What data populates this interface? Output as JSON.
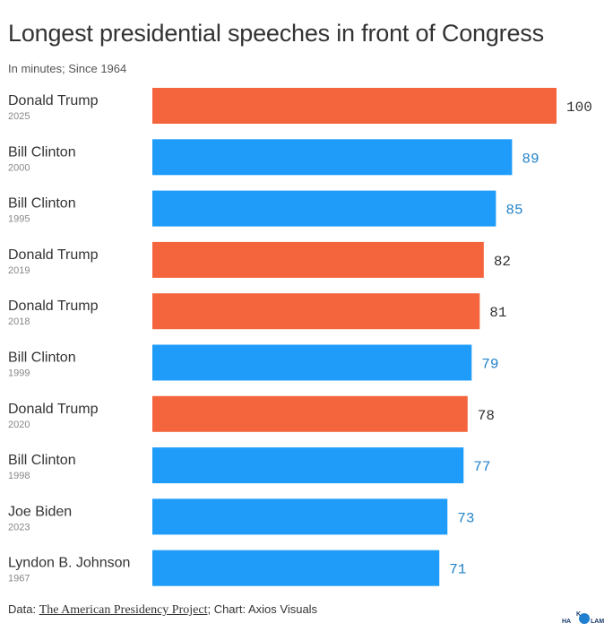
{
  "title": "Longest presidential speeches in front of Congress",
  "subtitle": "In minutes; Since 1964",
  "footer": {
    "prefix": "Data: ",
    "source": "The American Presidency Project",
    "suffix": "; Chart: Axios Visuals"
  },
  "logo": {
    "line1": "K",
    "line2": "HA",
    "line3": "LAM"
  },
  "colors": {
    "republican": "#f4653e",
    "democrat": "#1f9cfa",
    "rep_label": "#333333",
    "dem_label": "#2383c9",
    "name_text": "#333333",
    "year_text": "#888888"
  },
  "chart_data": {
    "type": "bar",
    "orientation": "horizontal",
    "title": "Longest presidential speeches in front of Congress",
    "subtitle": "In minutes; Since 1964",
    "xlabel": "",
    "ylabel": "",
    "xlim": [
      0,
      100
    ],
    "categories": [
      {
        "name": "Donald Trump",
        "year": "2025",
        "value": 100,
        "party": "republican"
      },
      {
        "name": "Bill Clinton",
        "year": "2000",
        "value": 89,
        "party": "democrat"
      },
      {
        "name": "Bill Clinton",
        "year": "1995",
        "value": 85,
        "party": "democrat"
      },
      {
        "name": "Donald Trump",
        "year": "2019",
        "value": 82,
        "party": "republican"
      },
      {
        "name": "Donald Trump",
        "year": "2018",
        "value": 81,
        "party": "republican"
      },
      {
        "name": "Bill Clinton",
        "year": "1999",
        "value": 79,
        "party": "democrat"
      },
      {
        "name": "Donald Trump",
        "year": "2020",
        "value": 78,
        "party": "republican"
      },
      {
        "name": "Bill Clinton",
        "year": "1998",
        "value": 77,
        "party": "democrat"
      },
      {
        "name": "Joe Biden",
        "year": "2023",
        "value": 73,
        "party": "democrat"
      },
      {
        "name": "Lyndon B. Johnson",
        "year": "1967",
        "value": 71,
        "party": "democrat"
      }
    ]
  }
}
